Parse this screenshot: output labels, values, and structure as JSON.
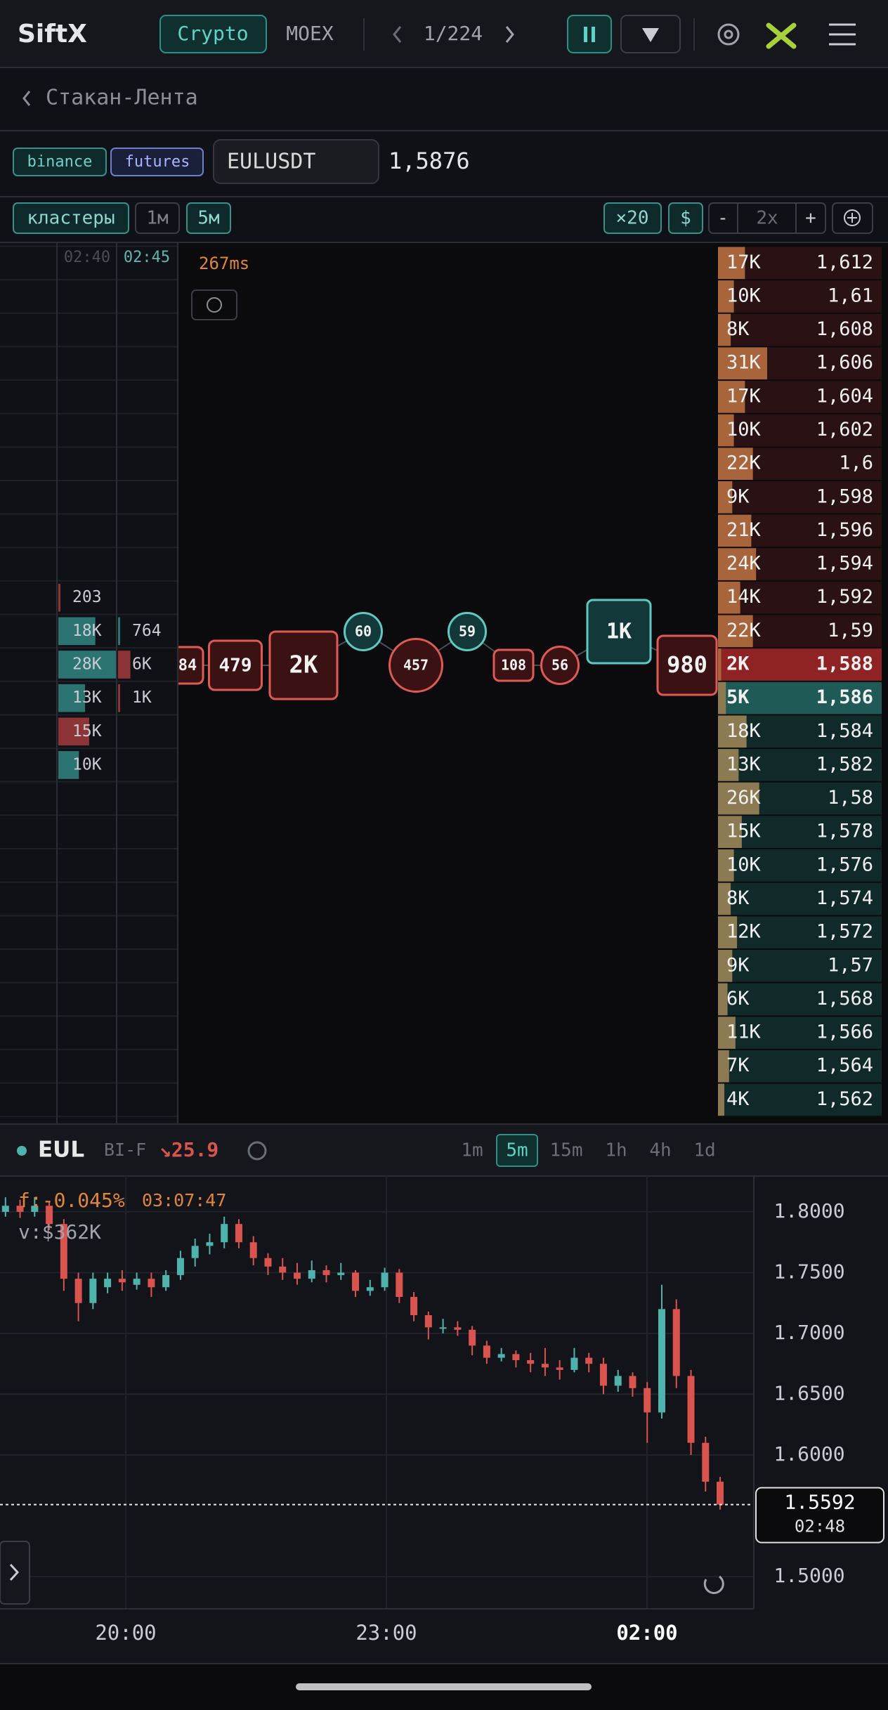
{
  "nav": {
    "logo": "SiftX",
    "tabs": [
      "Crypto",
      "MOEX"
    ],
    "page": "1/224"
  },
  "breadcrumb": "Стакан-Лента",
  "instrument": {
    "exchange": "binance",
    "market": "futures",
    "symbol": "EULUSDT",
    "price": "1,5876"
  },
  "toolbar": {
    "mode": "кластеры",
    "timeframes": [
      "1м",
      "5м"
    ],
    "multiplier": "×20",
    "currency": "$",
    "minus": "-",
    "zoom": "2x",
    "plus": "+"
  },
  "clusters": {
    "times": [
      "02:40",
      "02:45"
    ],
    "columns": [
      [
        {
          "value": 203,
          "side": "sell"
        },
        {
          "value": 18000,
          "label": "18K",
          "side": "buy"
        },
        {
          "value": 28000,
          "label": "28K",
          "side": "buy"
        },
        {
          "value": 13000,
          "label": "13K",
          "side": "buy"
        },
        {
          "value": 15000,
          "label": "15K",
          "side": "sell"
        },
        {
          "value": 10000,
          "label": "10K",
          "side": "buy"
        }
      ],
      [
        {
          "value": 764,
          "side": "buy"
        },
        {
          "value": 6000,
          "label": "6K",
          "side": "sell"
        },
        {
          "value": 1000,
          "label": "1K",
          "side": "sell"
        }
      ]
    ]
  },
  "latency": "267ms",
  "tape": [
    {
      "label": "84",
      "side": "sell"
    },
    {
      "label": "479",
      "side": "sell"
    },
    {
      "label": "2K",
      "side": "sell"
    },
    {
      "label": "60",
      "side": "buy"
    },
    {
      "label": "457",
      "side": "sell"
    },
    {
      "label": "59",
      "side": "buy"
    },
    {
      "label": "108",
      "side": "sell"
    },
    {
      "label": "56",
      "side": "sell"
    },
    {
      "label": "1K",
      "side": "buy"
    },
    {
      "label": "980",
      "side": "sell"
    }
  ],
  "order_book": [
    {
      "size": 17000,
      "size_label": "17K",
      "price": "1,612",
      "side": "ask"
    },
    {
      "size": 10000,
      "size_label": "10K",
      "price": "1,61",
      "side": "ask"
    },
    {
      "size": 8000,
      "size_label": "8K",
      "price": "1,608",
      "side": "ask"
    },
    {
      "size": 31000,
      "size_label": "31K",
      "price": "1,606",
      "side": "ask"
    },
    {
      "size": 17000,
      "size_label": "17K",
      "price": "1,604",
      "side": "ask"
    },
    {
      "size": 10000,
      "size_label": "10K",
      "price": "1,602",
      "side": "ask"
    },
    {
      "size": 22000,
      "size_label": "22K",
      "price": "1,6",
      "side": "ask"
    },
    {
      "size": 9000,
      "size_label": "9K",
      "price": "1,598",
      "side": "ask"
    },
    {
      "size": 21000,
      "size_label": "21K",
      "price": "1,596",
      "side": "ask"
    },
    {
      "size": 24000,
      "size_label": "24K",
      "price": "1,594",
      "side": "ask"
    },
    {
      "size": 14000,
      "size_label": "14K",
      "price": "1,592",
      "side": "ask"
    },
    {
      "size": 22000,
      "size_label": "22K",
      "price": "1,59",
      "side": "ask"
    },
    {
      "size": 2000,
      "size_label": "2K",
      "price": "1,588",
      "side": "ask",
      "highlight": true
    },
    {
      "size": 5000,
      "size_label": "5K",
      "price": "1,586",
      "side": "bid",
      "highlight": true
    },
    {
      "size": 18000,
      "size_label": "18K",
      "price": "1,584",
      "side": "bid"
    },
    {
      "size": 13000,
      "size_label": "13K",
      "price": "1,582",
      "side": "bid"
    },
    {
      "size": 26000,
      "size_label": "26K",
      "price": "1,58",
      "side": "bid"
    },
    {
      "size": 15000,
      "size_label": "15K",
      "price": "1,578",
      "side": "bid"
    },
    {
      "size": 10000,
      "size_label": "10K",
      "price": "1,576",
      "side": "bid"
    },
    {
      "size": 8000,
      "size_label": "8K",
      "price": "1,574",
      "side": "bid"
    },
    {
      "size": 12000,
      "size_label": "12K",
      "price": "1,572",
      "side": "bid"
    },
    {
      "size": 9000,
      "size_label": "9K",
      "price": "1,57",
      "side": "bid"
    },
    {
      "size": 6000,
      "size_label": "6K",
      "price": "1,568",
      "side": "bid"
    },
    {
      "size": 11000,
      "size_label": "11K",
      "price": "1,566",
      "side": "bid"
    },
    {
      "size": 7000,
      "size_label": "7K",
      "price": "1,564",
      "side": "bid"
    },
    {
      "size": 4000,
      "size_label": "4K",
      "price": "1,562",
      "side": "bid"
    }
  ],
  "chart_header": {
    "ticker": "EUL",
    "exchange": "BI-F",
    "change": "↘25.9",
    "intervals": [
      "1m",
      "5m",
      "15m",
      "1h",
      "4h",
      "1d"
    ],
    "active_interval": 1
  },
  "chart_data": {
    "type": "candlestick",
    "candles": [
      [
        1.8,
        1.812,
        1.796,
        1.805
      ],
      [
        1.805,
        1.81,
        1.795,
        1.8
      ],
      [
        1.8,
        1.812,
        1.796,
        1.805
      ],
      [
        1.805,
        1.808,
        1.785,
        1.79
      ],
      [
        1.79,
        1.794,
        1.735,
        1.745
      ],
      [
        1.745,
        1.75,
        1.71,
        1.725
      ],
      [
        1.725,
        1.75,
        1.72,
        1.745
      ],
      [
        1.738,
        1.75,
        1.733,
        1.745
      ],
      [
        1.745,
        1.752,
        1.735,
        1.742
      ],
      [
        1.74,
        1.75,
        1.736,
        1.745
      ],
      [
        1.745,
        1.75,
        1.73,
        1.738
      ],
      [
        1.738,
        1.752,
        1.735,
        1.748
      ],
      [
        1.748,
        1.768,
        1.744,
        1.762
      ],
      [
        1.762,
        1.778,
        1.755,
        1.772
      ],
      [
        1.772,
        1.782,
        1.765,
        1.775
      ],
      [
        1.775,
        1.796,
        1.77,
        1.79
      ],
      [
        1.79,
        1.794,
        1.77,
        1.775
      ],
      [
        1.775,
        1.78,
        1.756,
        1.762
      ],
      [
        1.762,
        1.766,
        1.748,
        1.755
      ],
      [
        1.755,
        1.762,
        1.744,
        1.75
      ],
      [
        1.75,
        1.758,
        1.74,
        1.745
      ],
      [
        1.745,
        1.76,
        1.742,
        1.752
      ],
      [
        1.752,
        1.756,
        1.742,
        1.748
      ],
      [
        1.748,
        1.758,
        1.744,
        1.75
      ],
      [
        1.75,
        1.752,
        1.73,
        1.735
      ],
      [
        1.735,
        1.744,
        1.731,
        1.738
      ],
      [
        1.738,
        1.754,
        1.735,
        1.75
      ],
      [
        1.75,
        1.753,
        1.725,
        1.73
      ],
      [
        1.73,
        1.734,
        1.71,
        1.715
      ],
      [
        1.715,
        1.718,
        1.695,
        1.705
      ],
      [
        1.705,
        1.712,
        1.7,
        1.705
      ],
      [
        1.705,
        1.71,
        1.698,
        1.703
      ],
      [
        1.703,
        1.706,
        1.682,
        1.69
      ],
      [
        1.69,
        1.694,
        1.675,
        1.68
      ],
      [
        1.68,
        1.688,
        1.677,
        1.683
      ],
      [
        1.683,
        1.686,
        1.672,
        1.678
      ],
      [
        1.678,
        1.684,
        1.668,
        1.675
      ],
      [
        1.675,
        1.688,
        1.665,
        1.672
      ],
      [
        1.672,
        1.678,
        1.662,
        1.67
      ],
      [
        1.67,
        1.688,
        1.668,
        1.68
      ],
      [
        1.68,
        1.684,
        1.668,
        1.675
      ],
      [
        1.675,
        1.68,
        1.65,
        1.657
      ],
      [
        1.657,
        1.67,
        1.652,
        1.665
      ],
      [
        1.665,
        1.668,
        1.648,
        1.655
      ],
      [
        1.655,
        1.66,
        1.61,
        1.635
      ],
      [
        1.635,
        1.74,
        1.63,
        1.72
      ],
      [
        1.72,
        1.728,
        1.655,
        1.665
      ],
      [
        1.665,
        1.67,
        1.6,
        1.61
      ],
      [
        1.61,
        1.615,
        1.57,
        1.578
      ],
      [
        1.578,
        1.582,
        1.555,
        1.5592
      ]
    ],
    "ylim": [
      1.47,
      1.83
    ],
    "yticks": [
      {
        "value": 1.8,
        "label": "1.8000"
      },
      {
        "value": 1.75,
        "label": "1.7500"
      },
      {
        "value": 1.7,
        "label": "1.7000"
      },
      {
        "value": 1.65,
        "label": "1.6500"
      },
      {
        "value": 1.6,
        "label": "1.6000"
      },
      {
        "value": 1.5,
        "label": "1.5000"
      }
    ],
    "x_labels": [
      "20:00",
      "23:00",
      "02:00"
    ],
    "last_price": 1.5592,
    "last_time": "02:48",
    "funding": "f:-0.045%",
    "funding_countdown": "03:07:47",
    "volume": "v:$362K",
    "up_color": "#4fb3ad",
    "down_color": "#d9534f",
    "grid": true
  }
}
